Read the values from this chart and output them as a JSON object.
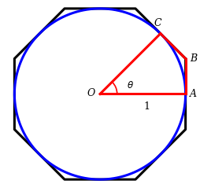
{
  "n_sides": 8,
  "apothem": 1.0,
  "circle_color": "#0000ff",
  "octagon_color": "#000000",
  "wedge_color": "#ff0000",
  "background_color": "#ffffff",
  "label_O": "O",
  "label_A": "A",
  "label_B": "B",
  "label_C": "C",
  "label_theta": "$\\theta$",
  "label_1": "1",
  "octagon_linewidth": 2.2,
  "circle_linewidth": 2.2,
  "wedge_linewidth": 2.2,
  "figsize": [
    2.54,
    2.39
  ],
  "dpi": 100
}
